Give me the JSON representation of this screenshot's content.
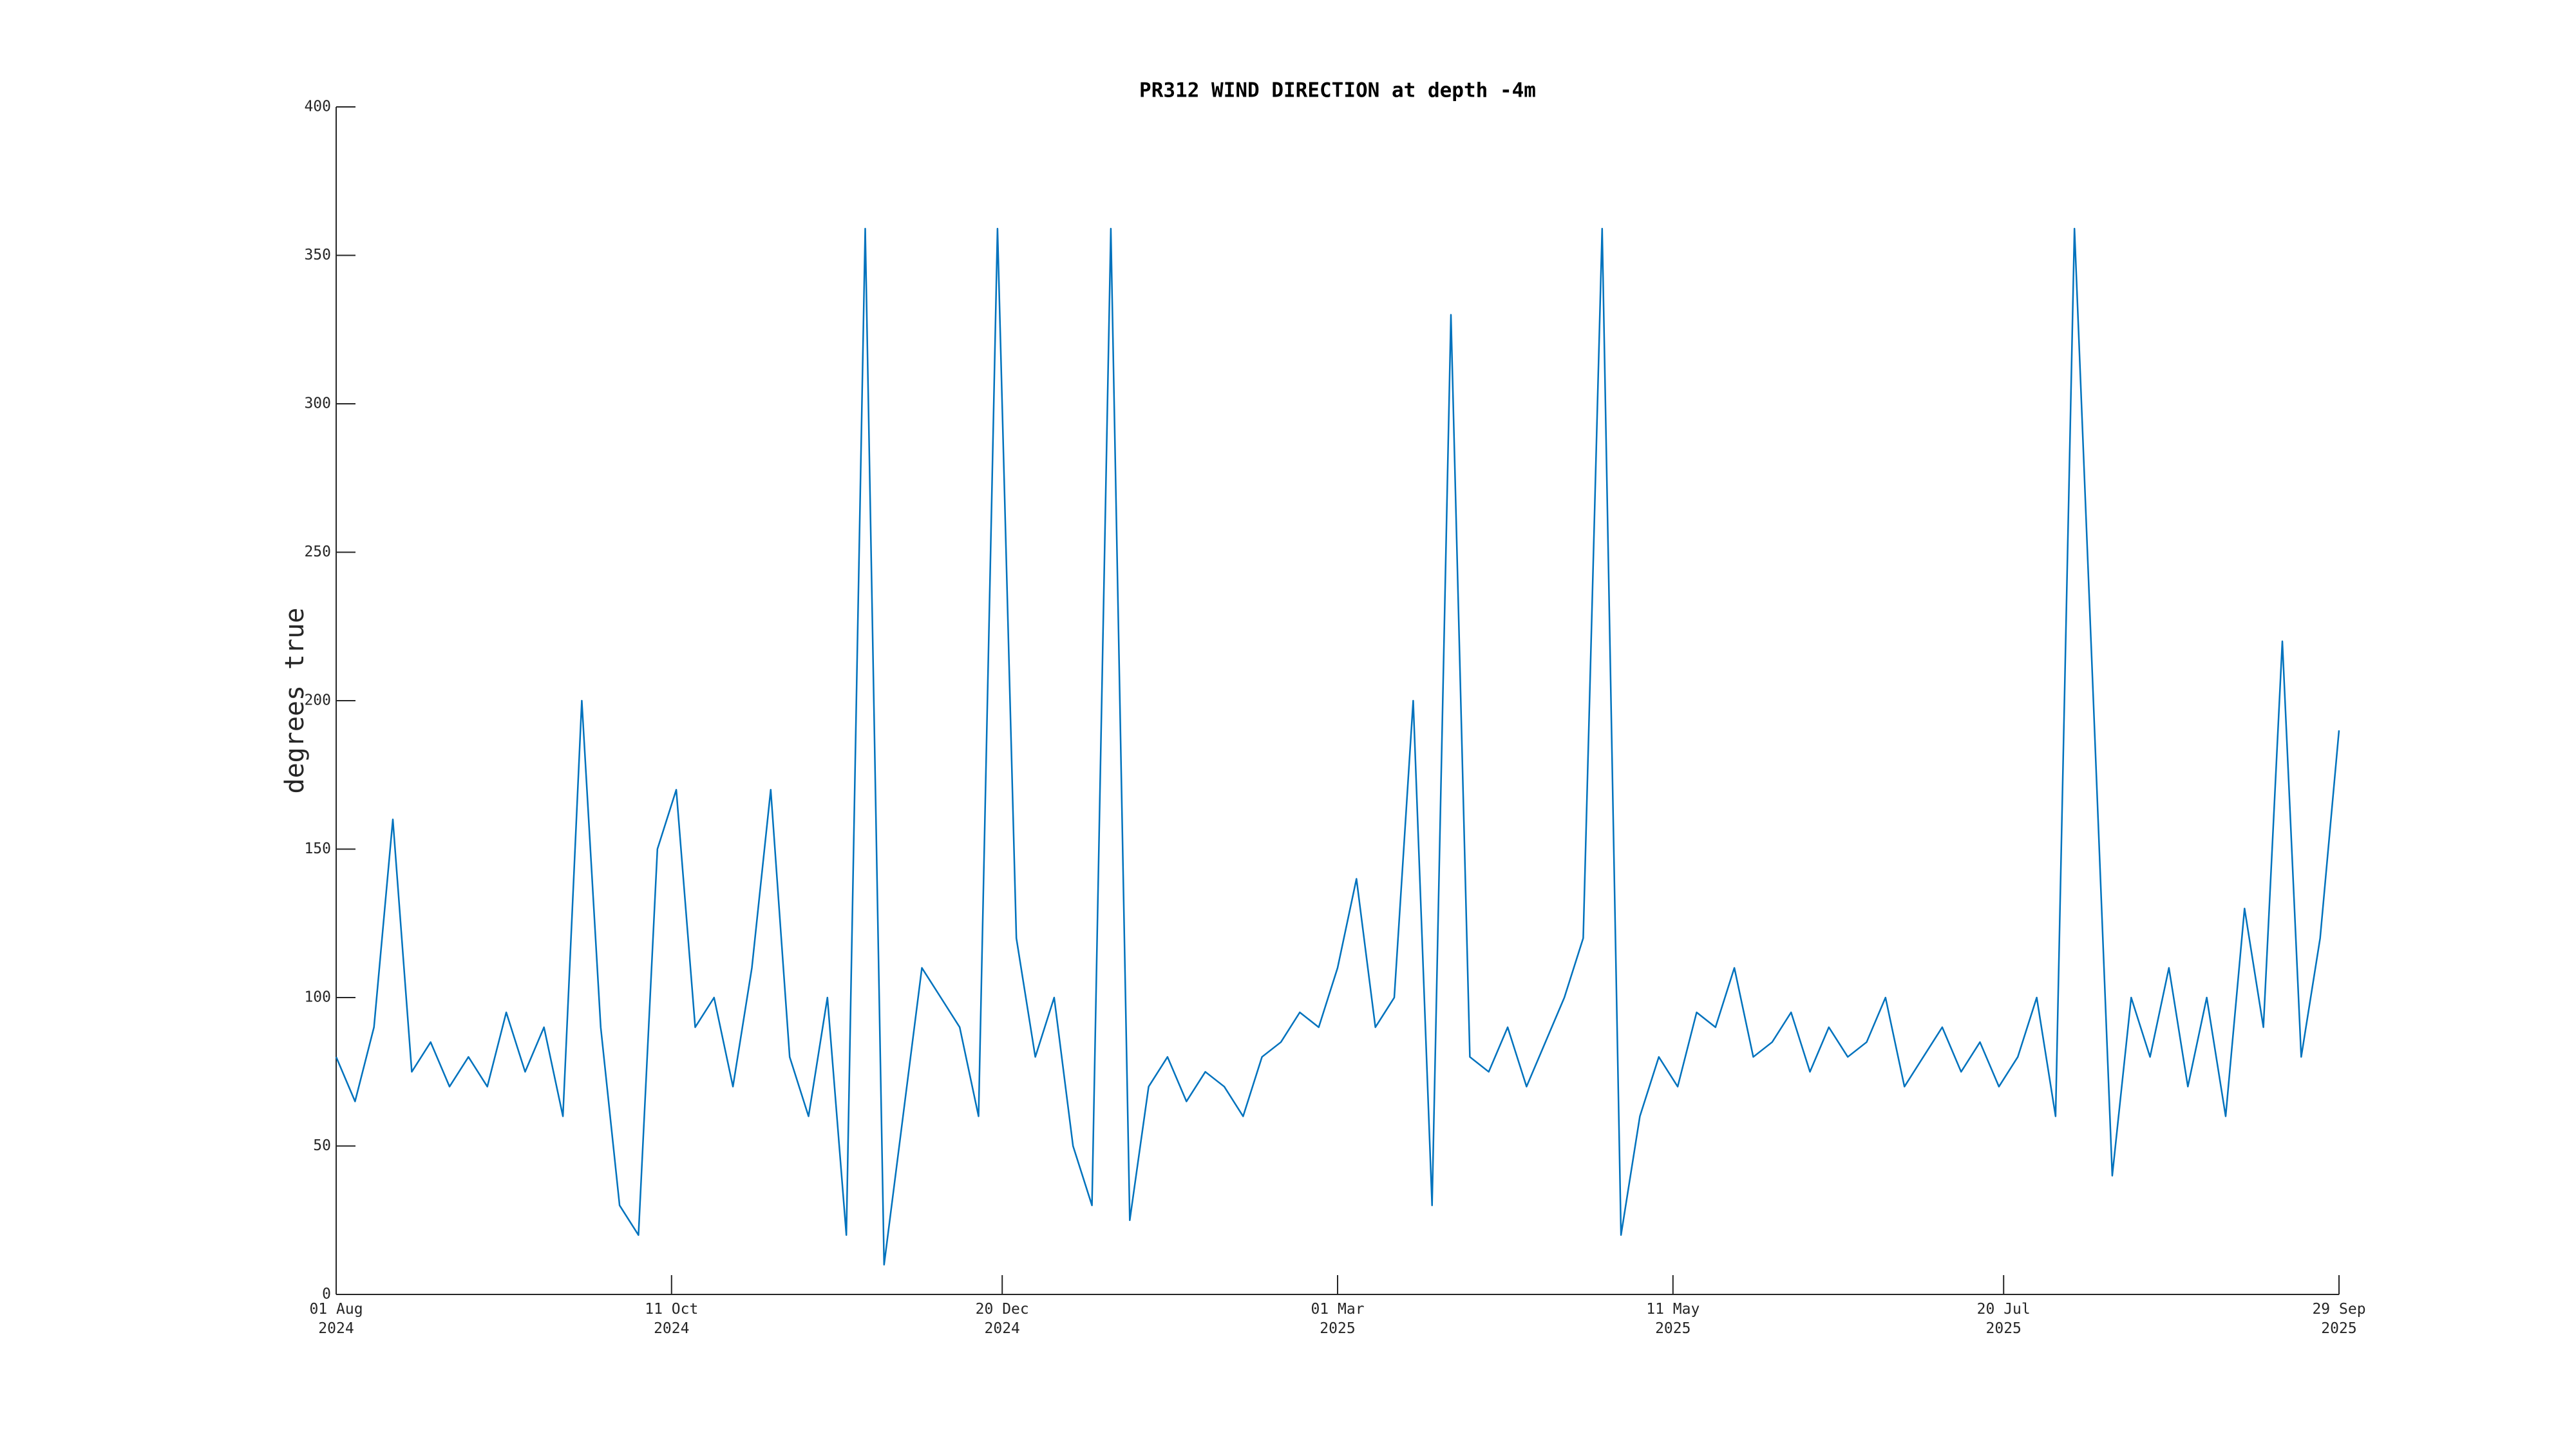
{
  "chart_data": {
    "type": "line",
    "title": "PR312 WIND DIRECTION at depth -4m",
    "y_label": "degrees true",
    "color": "#0072bd",
    "x": [
      "2024-08-01",
      "2024-08-05",
      "2024-08-09",
      "2024-08-13",
      "2024-08-17",
      "2024-08-21",
      "2024-08-25",
      "2024-08-29",
      "2024-09-02",
      "2024-09-06",
      "2024-09-10",
      "2024-09-14",
      "2024-09-18",
      "2024-09-22",
      "2024-09-26",
      "2024-09-30",
      "2024-10-04",
      "2024-10-08",
      "2024-10-12",
      "2024-10-16",
      "2024-10-20",
      "2024-10-24",
      "2024-10-28",
      "2024-11-01",
      "2024-11-05",
      "2024-11-09",
      "2024-11-13",
      "2024-11-17",
      "2024-11-21",
      "2024-11-25",
      "2024-11-29",
      "2024-12-03",
      "2024-12-07",
      "2024-12-11",
      "2024-12-15",
      "2024-12-19",
      "2024-12-23",
      "2024-12-27",
      "2024-12-31",
      "2025-01-04",
      "2025-01-08",
      "2025-01-12",
      "2025-01-16",
      "2025-01-20",
      "2025-01-24",
      "2025-01-28",
      "2025-02-01",
      "2025-02-05",
      "2025-02-09",
      "2025-02-13",
      "2025-02-17",
      "2025-02-21",
      "2025-02-25",
      "2025-03-01",
      "2025-03-05",
      "2025-03-09",
      "2025-03-13",
      "2025-03-17",
      "2025-03-21",
      "2025-03-25",
      "2025-03-29",
      "2025-04-02",
      "2025-04-06",
      "2025-04-10",
      "2025-04-14",
      "2025-04-18",
      "2025-04-22",
      "2025-04-26",
      "2025-04-30",
      "2025-05-04",
      "2025-05-08",
      "2025-05-12",
      "2025-05-16",
      "2025-05-20",
      "2025-05-24",
      "2025-05-28",
      "2025-06-01",
      "2025-06-05",
      "2025-06-09",
      "2025-06-13",
      "2025-06-17",
      "2025-06-21",
      "2025-06-25",
      "2025-06-29",
      "2025-07-03",
      "2025-07-07",
      "2025-07-11",
      "2025-07-15",
      "2025-07-19",
      "2025-07-23",
      "2025-07-27",
      "2025-07-31",
      "2025-08-04",
      "2025-08-08",
      "2025-08-12",
      "2025-08-16",
      "2025-08-20",
      "2025-08-24",
      "2025-08-28",
      "2025-09-01",
      "2025-09-05",
      "2025-09-09",
      "2025-09-13",
      "2025-09-17",
      "2025-09-21",
      "2025-09-25",
      "2025-09-29"
    ],
    "values": [
      80,
      65,
      90,
      160,
      75,
      85,
      70,
      80,
      70,
      95,
      75,
      90,
      60,
      200,
      90,
      30,
      20,
      150,
      170,
      90,
      100,
      70,
      110,
      170,
      80,
      60,
      100,
      20,
      359,
      10,
      60,
      110,
      100,
      90,
      60,
      359,
      120,
      80,
      100,
      50,
      30,
      359,
      25,
      70,
      80,
      65,
      75,
      70,
      60,
      80,
      85,
      95,
      90,
      110,
      140,
      90,
      100,
      200,
      30,
      330,
      80,
      75,
      90,
      70,
      85,
      100,
      120,
      359,
      20,
      60,
      80,
      70,
      95,
      90,
      110,
      80,
      85,
      95,
      75,
      90,
      80,
      85,
      100,
      70,
      80,
      90,
      75,
      85,
      70,
      80,
      100,
      60,
      359,
      200,
      40,
      100,
      80,
      110,
      70,
      100,
      60,
      130,
      90,
      220,
      80,
      120,
      190
    ],
    "xlim": [
      "2024-08-01",
      "2025-09-29"
    ],
    "xticks": [
      {
        "value": "2024-08-01",
        "label": "01 Aug\n2024"
      },
      {
        "value": "2024-10-11",
        "label": "11 Oct\n2024"
      },
      {
        "value": "2024-12-20",
        "label": "20 Dec\n2024"
      },
      {
        "value": "2025-03-01",
        "label": "01 Mar\n2025"
      },
      {
        "value": "2025-05-11",
        "label": "11 May\n2025"
      },
      {
        "value": "2025-07-20",
        "label": "20 Jul\n2025"
      },
      {
        "value": "2025-09-29",
        "label": "29 Sep\n2025"
      }
    ],
    "ylim": [
      0,
      400
    ],
    "yticks": [
      0,
      50,
      100,
      150,
      200,
      250,
      300,
      350,
      400
    ]
  }
}
